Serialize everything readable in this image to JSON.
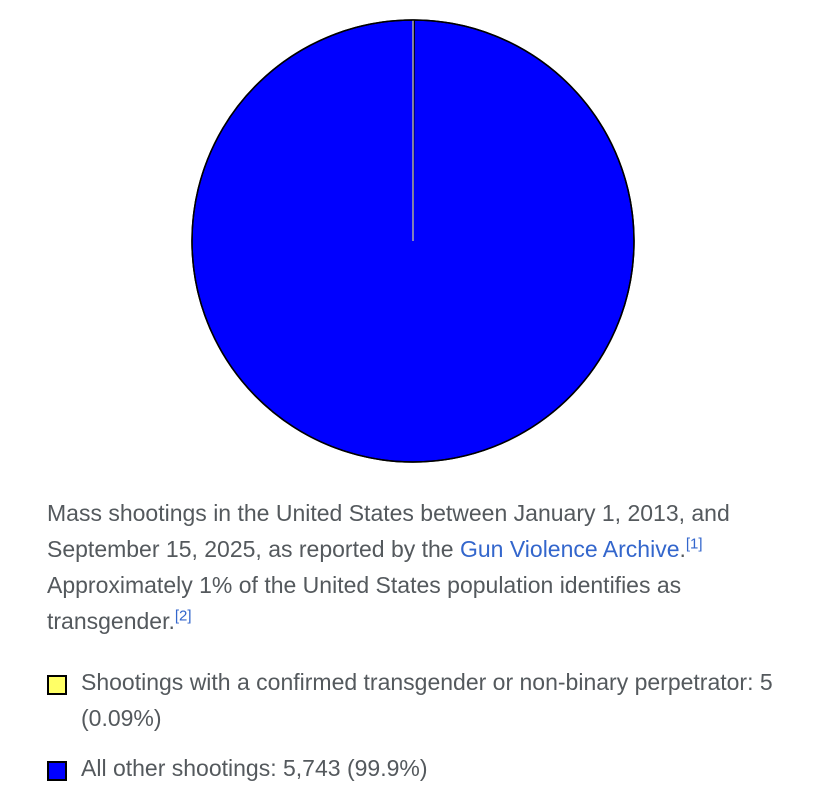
{
  "chart_data": {
    "type": "pie",
    "categories": [
      "Shootings with a confirmed transgender or non-binary perpetrator",
      "All other shootings"
    ],
    "values": [
      5,
      5743
    ],
    "percent_labels": [
      "0.09%",
      "99.9%"
    ],
    "count_labels": [
      "5",
      "5,743"
    ],
    "colors": [
      "#ffff66",
      "#0000ff"
    ],
    "title": "",
    "legend_position": "bottom"
  },
  "caption": {
    "part1": "Mass shootings in the United States between January 1, 2013, and September 15, 2025, as reported by the ",
    "link1": "Gun Violence Archive",
    "part2": ".",
    "ref1": "[1]",
    "part3": " Approximately 1% of the United States population identifies as transgender.",
    "ref2": "[2]"
  },
  "legend": [
    {
      "label": "Shootings with a confirmed transgender or non-binary perpetrator: 5 (0.09%)",
      "color": "#ffff66"
    },
    {
      "label": "All other shootings: 5,743 (99.9%)",
      "color": "#0000ff"
    }
  ]
}
